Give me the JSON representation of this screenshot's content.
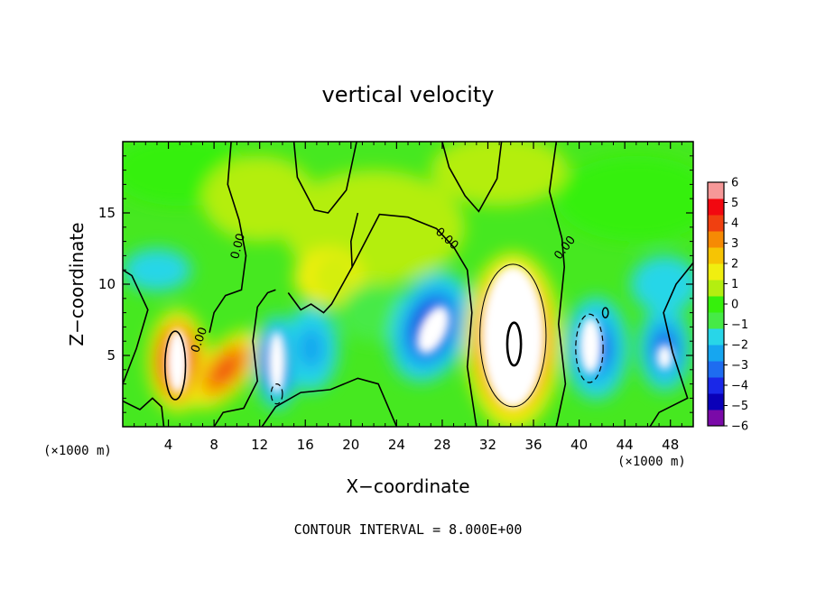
{
  "chart_data": {
    "type": "heatmap",
    "title": "vertical velocity",
    "xlabel": "X−coordinate",
    "ylabel": "Z−coordinate",
    "x_multiplier_label": "(×1000 m)",
    "x_multiplier_label_right": "(×1000 m)",
    "footer": "CONTOUR INTERVAL = 8.000E+00",
    "contour_label": "0.00",
    "xlim": [
      0,
      50
    ],
    "ylim": [
      0,
      20
    ],
    "xticks": [
      4,
      8,
      12,
      16,
      20,
      24,
      28,
      32,
      36,
      40,
      44,
      48
    ],
    "yticks": [
      5,
      10,
      15
    ],
    "colorbar": {
      "min": -6,
      "max": 6,
      "tick_labels": [
        "6",
        "5",
        "4",
        "3",
        "2",
        "1",
        "0",
        "−1",
        "−2",
        "−3",
        "−4",
        "−5",
        "−6"
      ],
      "colors": [
        "#7a0aa8",
        "#0a00b8",
        "#1a28e8",
        "#1e6cf0",
        "#16a6f0",
        "#28d6e8",
        "#46ea46",
        "#36f00c",
        "#b4ee10",
        "#f0ee10",
        "#f6c404",
        "#f68a04",
        "#f04010",
        "#f20810",
        "#f69898"
      ]
    },
    "features": [
      {
        "x": 4.8,
        "z": 4.6,
        "w": 6.0,
        "kind": "updraft"
      },
      {
        "x": 9.0,
        "z": 4.0,
        "w": 4.0,
        "kind": "updraft"
      },
      {
        "x": 13.5,
        "z": 4.5,
        "w": -6.0,
        "kind": "downdraft"
      },
      {
        "x": 16.5,
        "z": 5.5,
        "w": -3.0,
        "kind": "downdraft"
      },
      {
        "x": 27.0,
        "z": 7.0,
        "w": -6.0,
        "kind": "downdraft"
      },
      {
        "x": 34.2,
        "z": 6.0,
        "w": 6.0,
        "kind": "updraft"
      },
      {
        "x": 41.5,
        "z": 5.5,
        "w": -5.0,
        "kind": "downdraft"
      },
      {
        "x": 47.5,
        "z": 5.5,
        "w": -5.0,
        "kind": "downdraft"
      },
      {
        "x": 18.5,
        "z": 10.5,
        "w": 2.0,
        "kind": "updraft"
      }
    ]
  }
}
